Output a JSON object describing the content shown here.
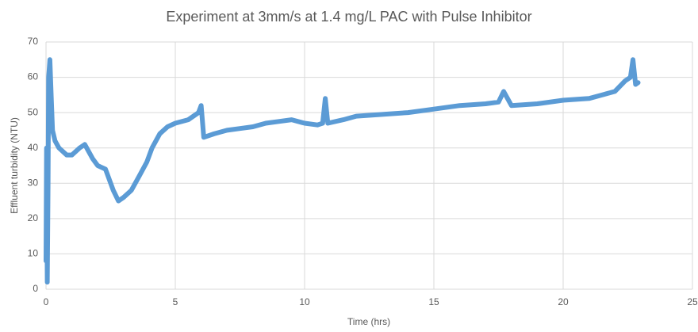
{
  "chart_data": {
    "type": "line",
    "title": "Experiment at 3mm/s at 1.4 mg/L PAC with Pulse Inhibitor",
    "x_label": "Time (hrs)",
    "y_label": "Effluent turbidity (NTU)",
    "xlim": [
      0,
      25
    ],
    "ylim": [
      0,
      70
    ],
    "xticks": [
      0,
      5,
      10,
      15,
      20,
      25
    ],
    "yticks": [
      0,
      10,
      20,
      30,
      40,
      50,
      60,
      70
    ],
    "grid": true,
    "series": [
      {
        "color": "#5b9bd5",
        "x": [
          0,
          0.02,
          0.05,
          0.08,
          0.1,
          0.15,
          0.2,
          0.25,
          0.35,
          0.5,
          0.8,
          1.0,
          1.3,
          1.5,
          1.8,
          2.0,
          2.3,
          2.6,
          2.8,
          3.0,
          3.3,
          3.6,
          3.9,
          4.1,
          4.4,
          4.7,
          5.0,
          5.5,
          5.9,
          6.0,
          6.1,
          6.5,
          7,
          7.5,
          8,
          8.5,
          9,
          9.5,
          10,
          10.5,
          10.7,
          10.8,
          10.9,
          11.5,
          12,
          13,
          14,
          15,
          16,
          17,
          17.5,
          17.7,
          18,
          19,
          20,
          21,
          21.5,
          22,
          22.4,
          22.6,
          22.7,
          22.8,
          22.9
        ],
        "values": [
          8,
          40,
          2,
          30,
          60,
          65,
          55,
          45,
          42,
          40,
          38,
          38,
          40,
          41,
          37,
          35,
          34,
          28,
          25,
          26,
          28,
          32,
          36,
          40,
          44,
          46,
          47,
          48,
          50,
          52,
          43,
          44,
          45,
          45.5,
          46,
          47,
          47.5,
          48,
          47,
          46.5,
          47,
          54,
          47,
          48,
          49,
          49.5,
          50,
          51,
          52,
          52.5,
          53,
          56,
          52,
          52.5,
          53.5,
          54,
          55,
          56,
          59,
          60,
          65,
          58,
          58.5
        ]
      }
    ]
  }
}
